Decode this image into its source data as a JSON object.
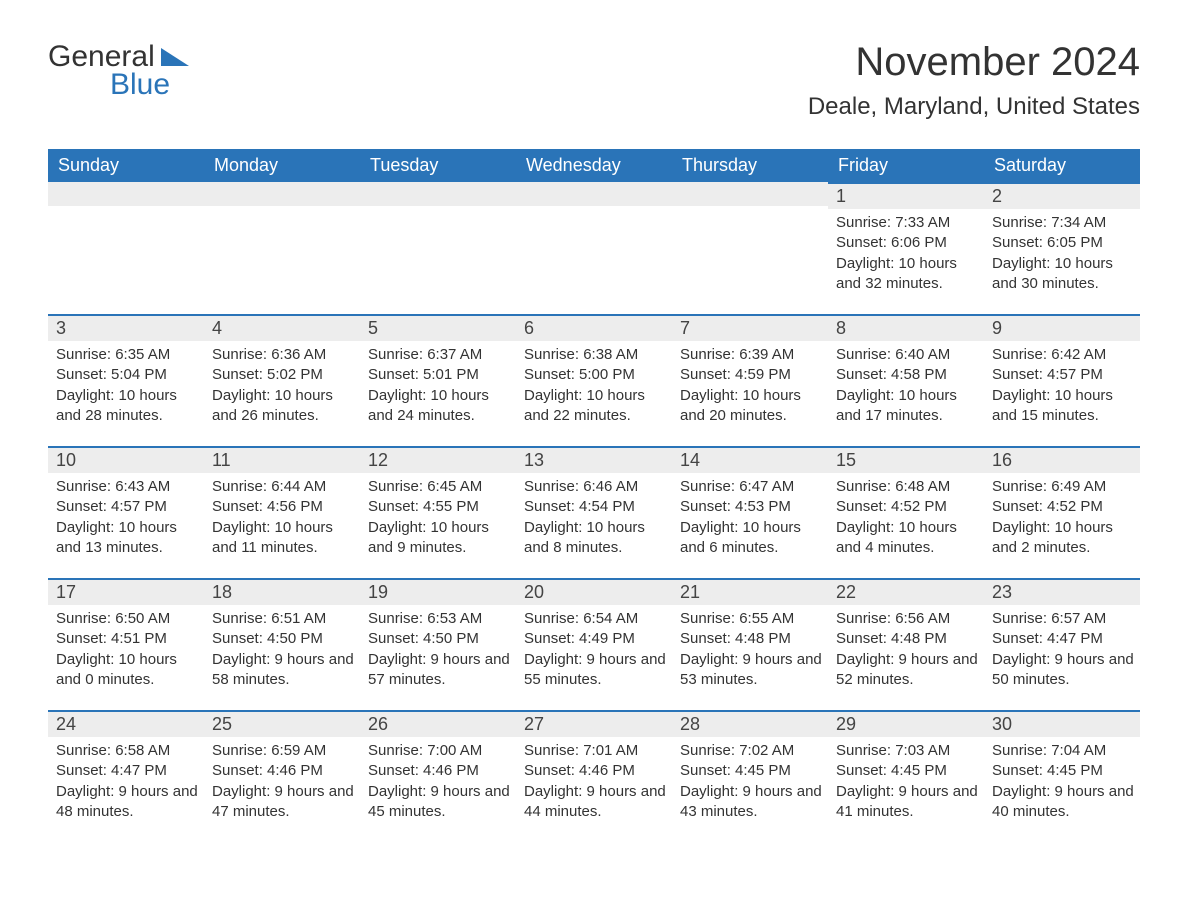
{
  "logo": {
    "text1": "General",
    "text2": "Blue"
  },
  "title": "November 2024",
  "location": "Deale, Maryland, United States",
  "colors": {
    "brand_blue": "#2a74b8",
    "header_bg": "#2a74b8",
    "header_text": "#ffffff",
    "daynum_bg": "#ededed",
    "daynum_border": "#2a74b8",
    "body_text": "#333333",
    "page_bg": "#ffffff"
  },
  "weekdays": [
    "Sunday",
    "Monday",
    "Tuesday",
    "Wednesday",
    "Thursday",
    "Friday",
    "Saturday"
  ],
  "leading_blanks": 5,
  "days": [
    {
      "n": "1",
      "sunrise": "7:33 AM",
      "sunset": "6:06 PM",
      "daylight": "10 hours and 32 minutes."
    },
    {
      "n": "2",
      "sunrise": "7:34 AM",
      "sunset": "6:05 PM",
      "daylight": "10 hours and 30 minutes."
    },
    {
      "n": "3",
      "sunrise": "6:35 AM",
      "sunset": "5:04 PM",
      "daylight": "10 hours and 28 minutes."
    },
    {
      "n": "4",
      "sunrise": "6:36 AM",
      "sunset": "5:02 PM",
      "daylight": "10 hours and 26 minutes."
    },
    {
      "n": "5",
      "sunrise": "6:37 AM",
      "sunset": "5:01 PM",
      "daylight": "10 hours and 24 minutes."
    },
    {
      "n": "6",
      "sunrise": "6:38 AM",
      "sunset": "5:00 PM",
      "daylight": "10 hours and 22 minutes."
    },
    {
      "n": "7",
      "sunrise": "6:39 AM",
      "sunset": "4:59 PM",
      "daylight": "10 hours and 20 minutes."
    },
    {
      "n": "8",
      "sunrise": "6:40 AM",
      "sunset": "4:58 PM",
      "daylight": "10 hours and 17 minutes."
    },
    {
      "n": "9",
      "sunrise": "6:42 AM",
      "sunset": "4:57 PM",
      "daylight": "10 hours and 15 minutes."
    },
    {
      "n": "10",
      "sunrise": "6:43 AM",
      "sunset": "4:57 PM",
      "daylight": "10 hours and 13 minutes."
    },
    {
      "n": "11",
      "sunrise": "6:44 AM",
      "sunset": "4:56 PM",
      "daylight": "10 hours and 11 minutes."
    },
    {
      "n": "12",
      "sunrise": "6:45 AM",
      "sunset": "4:55 PM",
      "daylight": "10 hours and 9 minutes."
    },
    {
      "n": "13",
      "sunrise": "6:46 AM",
      "sunset": "4:54 PM",
      "daylight": "10 hours and 8 minutes."
    },
    {
      "n": "14",
      "sunrise": "6:47 AM",
      "sunset": "4:53 PM",
      "daylight": "10 hours and 6 minutes."
    },
    {
      "n": "15",
      "sunrise": "6:48 AM",
      "sunset": "4:52 PM",
      "daylight": "10 hours and 4 minutes."
    },
    {
      "n": "16",
      "sunrise": "6:49 AM",
      "sunset": "4:52 PM",
      "daylight": "10 hours and 2 minutes."
    },
    {
      "n": "17",
      "sunrise": "6:50 AM",
      "sunset": "4:51 PM",
      "daylight": "10 hours and 0 minutes."
    },
    {
      "n": "18",
      "sunrise": "6:51 AM",
      "sunset": "4:50 PM",
      "daylight": "9 hours and 58 minutes."
    },
    {
      "n": "19",
      "sunrise": "6:53 AM",
      "sunset": "4:50 PM",
      "daylight": "9 hours and 57 minutes."
    },
    {
      "n": "20",
      "sunrise": "6:54 AM",
      "sunset": "4:49 PM",
      "daylight": "9 hours and 55 minutes."
    },
    {
      "n": "21",
      "sunrise": "6:55 AM",
      "sunset": "4:48 PM",
      "daylight": "9 hours and 53 minutes."
    },
    {
      "n": "22",
      "sunrise": "6:56 AM",
      "sunset": "4:48 PM",
      "daylight": "9 hours and 52 minutes."
    },
    {
      "n": "23",
      "sunrise": "6:57 AM",
      "sunset": "4:47 PM",
      "daylight": "9 hours and 50 minutes."
    },
    {
      "n": "24",
      "sunrise": "6:58 AM",
      "sunset": "4:47 PM",
      "daylight": "9 hours and 48 minutes."
    },
    {
      "n": "25",
      "sunrise": "6:59 AM",
      "sunset": "4:46 PM",
      "daylight": "9 hours and 47 minutes."
    },
    {
      "n": "26",
      "sunrise": "7:00 AM",
      "sunset": "4:46 PM",
      "daylight": "9 hours and 45 minutes."
    },
    {
      "n": "27",
      "sunrise": "7:01 AM",
      "sunset": "4:46 PM",
      "daylight": "9 hours and 44 minutes."
    },
    {
      "n": "28",
      "sunrise": "7:02 AM",
      "sunset": "4:45 PM",
      "daylight": "9 hours and 43 minutes."
    },
    {
      "n": "29",
      "sunrise": "7:03 AM",
      "sunset": "4:45 PM",
      "daylight": "9 hours and 41 minutes."
    },
    {
      "n": "30",
      "sunrise": "7:04 AM",
      "sunset": "4:45 PM",
      "daylight": "9 hours and 40 minutes."
    }
  ],
  "labels": {
    "sunrise": "Sunrise: ",
    "sunset": "Sunset: ",
    "daylight": "Daylight: "
  }
}
